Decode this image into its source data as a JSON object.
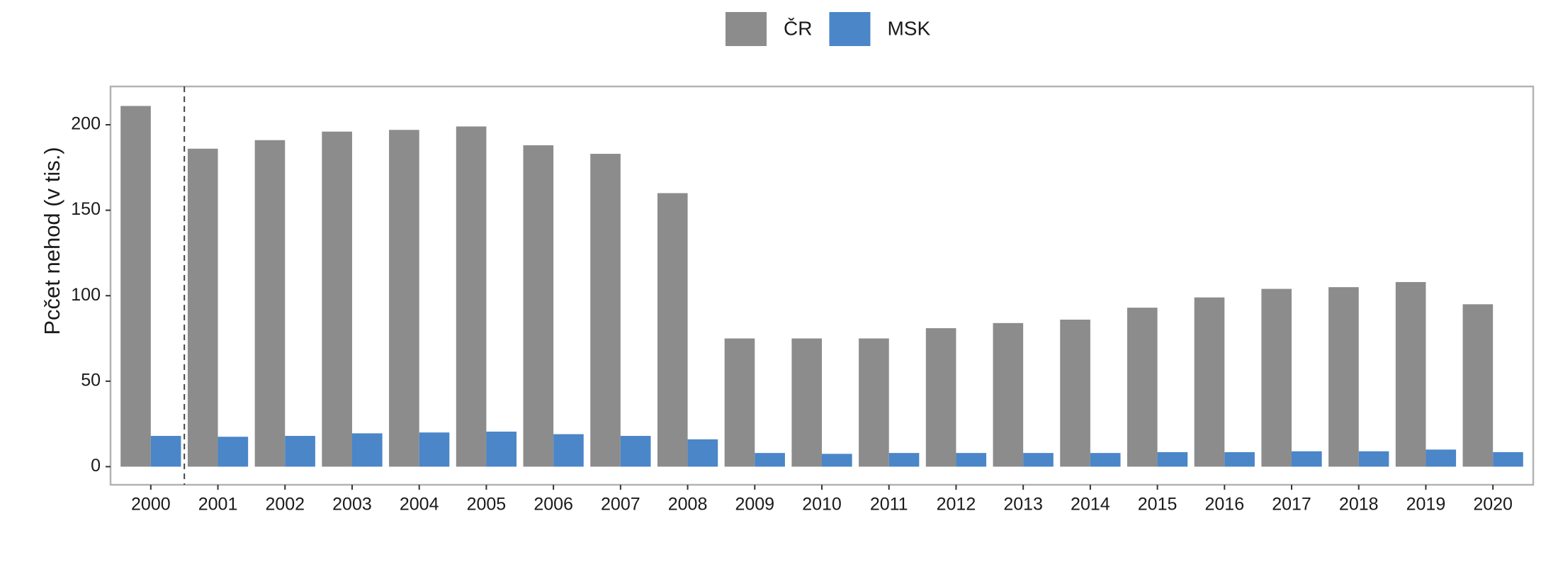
{
  "chart_data": {
    "type": "bar",
    "y_label": "Pcčet nehod (v tis.)",
    "categories": [
      "2000",
      "2001",
      "2002",
      "2003",
      "2004",
      "2005",
      "2006",
      "2007",
      "2008",
      "2009",
      "2010",
      "2011",
      "2012",
      "2013",
      "2014",
      "2015",
      "2016",
      "2017",
      "2018",
      "2019",
      "2020"
    ],
    "series": [
      {
        "name": "ČR",
        "color": "#8c8c8d",
        "values": [
          211,
          186,
          191,
          196,
          197,
          199,
          188,
          183,
          160,
          75,
          75,
          75,
          81,
          84,
          86,
          93,
          99,
          104,
          105,
          108,
          95
        ]
      },
      {
        "name": "MSK",
        "color": "#4a86c8",
        "values": [
          18,
          17.5,
          18,
          19.5,
          20,
          20.5,
          19,
          18,
          16,
          8,
          7.5,
          8,
          8,
          8,
          8,
          8.5,
          8.5,
          9,
          9,
          10,
          8.5
        ]
      }
    ],
    "ylim": [
      -10.6,
      222.4
    ],
    "yticks": [
      0,
      50,
      100,
      150,
      200
    ],
    "grid": false,
    "legend": "top"
  }
}
